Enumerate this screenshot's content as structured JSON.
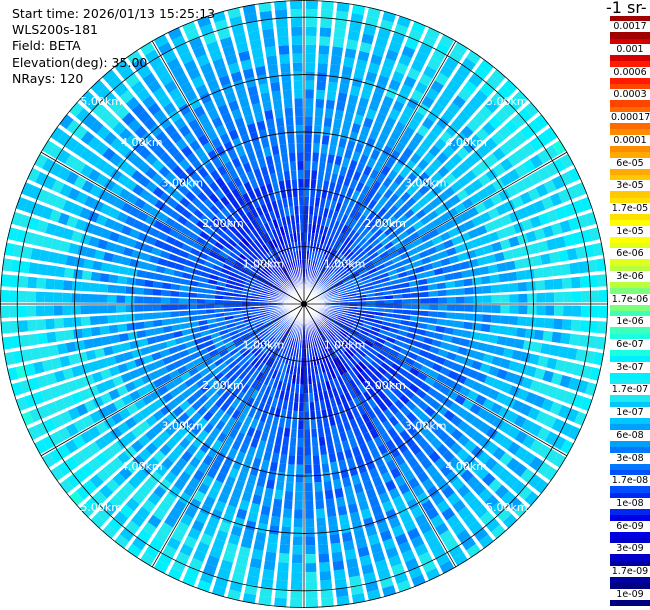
{
  "info": {
    "start_time": "Start time: 2026/01/13 15:25:13",
    "device": "WLS200s-181",
    "field": "Field: BETA",
    "elevation": "Elevation(deg): 35.00",
    "nrays": "NRays: 120"
  },
  "colorbar": {
    "title": "-1 sr-",
    "labels": [
      "0.0017",
      "0.001",
      "0.0006",
      "0.0003",
      "0.00017",
      "0.0001",
      "6e-05",
      "3e-05",
      "1.7e-05",
      "1e-05",
      "6e-06",
      "3e-06",
      "1.7e-06",
      "1e-06",
      "6e-07",
      "3e-07",
      "1.7e-07",
      "1e-07",
      "6e-08",
      "3e-08",
      "1.7e-08",
      "1e-08",
      "6e-09",
      "3e-09",
      "1.7e-09",
      "1e-09"
    ],
    "colors": [
      "#a00000",
      "#d40000",
      "#ff1a00",
      "#ff4400",
      "#ff6a00",
      "#ff8c00",
      "#ffaa00",
      "#ffc800",
      "#ffe000",
      "#ffff00",
      "#e0ff1a",
      "#b8ff40",
      "#7cff7a",
      "#40ffb8",
      "#1affe0",
      "#00f0ff",
      "#20e8f0",
      "#00c8ff",
      "#00a0ff",
      "#0078ff",
      "#0050ff",
      "#0028f0",
      "#0000e6",
      "#0000c8",
      "#0000a0",
      "#000080"
    ]
  },
  "chart_data": {
    "type": "heatmap",
    "projection": "polar-ppi",
    "field": "BETA",
    "elevation_deg": 35.0,
    "n_rays": 120,
    "range_rings": [
      {
        "range_km": 1.0,
        "label": "1.00km"
      },
      {
        "range_km": 2.0,
        "label": "2.00km"
      },
      {
        "range_km": 3.0,
        "label": "3.00km"
      },
      {
        "range_km": 4.0,
        "label": "4.00km"
      },
      {
        "range_km": 5.0,
        "label": "5.00km"
      }
    ],
    "max_range_km": 5.3,
    "azimuth_gridlines_deg": [
      0,
      30,
      60,
      90,
      120,
      150,
      180,
      210,
      240,
      270,
      300,
      330
    ],
    "colorscale": "log",
    "value_range": [
      1e-09,
      0.0017
    ],
    "value_bands_by_range": [
      {
        "range_km": 0.5,
        "beta": 1e-08
      },
      {
        "range_km": 1.5,
        "beta": 1.7e-08
      },
      {
        "range_km": 2.5,
        "beta": 3e-08
      },
      {
        "range_km": 3.5,
        "beta": 6e-08
      },
      {
        "range_km": 4.5,
        "beta": 1e-07
      },
      {
        "range_km": 5.2,
        "beta": 1.7e-07
      }
    ]
  }
}
